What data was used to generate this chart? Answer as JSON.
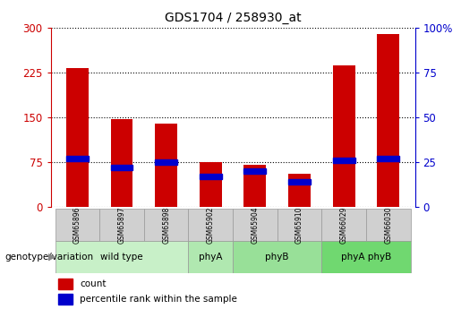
{
  "title": "GDS1704 / 258930_at",
  "samples": [
    "GSM65896",
    "GSM65897",
    "GSM65898",
    "GSM65902",
    "GSM65904",
    "GSM65910",
    "GSM66029",
    "GSM66030"
  ],
  "count_values": [
    232,
    147,
    140,
    75,
    70,
    55,
    237,
    290
  ],
  "percentile_values": [
    27,
    22,
    25,
    17,
    20,
    14,
    26,
    27
  ],
  "groups": [
    {
      "label": "wild type",
      "indices": [
        0,
        1,
        2
      ]
    },
    {
      "label": "phyA",
      "indices": [
        3
      ]
    },
    {
      "label": "phyB",
      "indices": [
        4,
        5
      ]
    },
    {
      "label": "phyA phyB",
      "indices": [
        6,
        7
      ]
    }
  ],
  "group_colors": [
    "#c8f0c8",
    "#b0e8b0",
    "#98e098",
    "#70d870"
  ],
  "ylim_left": [
    0,
    300
  ],
  "ylim_right": [
    0,
    100
  ],
  "yticks_left": [
    0,
    75,
    150,
    225,
    300
  ],
  "yticks_right": [
    0,
    25,
    50,
    75,
    100
  ],
  "bar_color": "#cc0000",
  "marker_color": "#0000cc",
  "grid_color": "#000000",
  "label_color_left": "#cc0000",
  "label_color_right": "#0000cc",
  "plot_bg": "#ffffff",
  "bar_width": 0.5,
  "sample_box_color": "#d0d0d0",
  "sample_box_edge": "#999999",
  "genotype_label": "genotype/variation"
}
